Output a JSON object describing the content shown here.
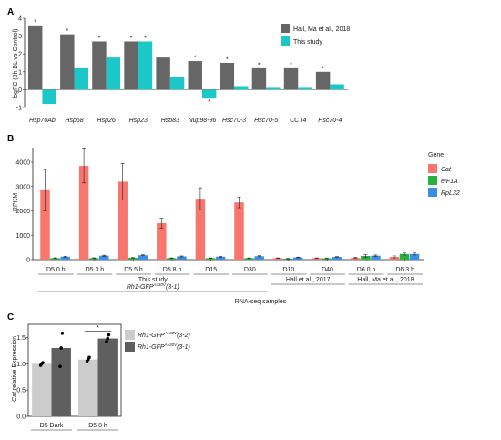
{
  "panels": [
    {
      "letter": "A",
      "type": "bar",
      "ylabel": "logFC (3h BL vs Control)",
      "ylim": [
        -1,
        4
      ],
      "yticks": [
        -1,
        0,
        1,
        2,
        3,
        4
      ],
      "categories": [
        "Hsp70Ab",
        "Hsp68",
        "Hsp26",
        "Hsp23",
        "Hsp83",
        "Nup98-96",
        "Hsc70-3",
        "Hsc70-5",
        "CCT4",
        "Hsc70-4"
      ],
      "series": [
        {
          "name": "Hall, Ma et al., 2018",
          "color": "#666666",
          "values": [
            3.6,
            3.1,
            2.7,
            2.7,
            1.8,
            1.6,
            1.5,
            1.2,
            1.2,
            1.0
          ]
        },
        {
          "name": "This study",
          "color": "#1cc7c7",
          "values": [
            -0.8,
            1.2,
            1.8,
            2.7,
            0.7,
            -0.5,
            0.2,
            0.1,
            0.1,
            0.3
          ]
        }
      ],
      "significance": [
        {
          "category": 0,
          "series": 0,
          "label": "*"
        },
        {
          "category": 1,
          "series": 0,
          "label": "*"
        },
        {
          "category": 2,
          "series": 0,
          "label": "*"
        },
        {
          "category": 3,
          "series": 0,
          "label": "*"
        },
        {
          "category": 3,
          "series": 1,
          "label": "*"
        },
        {
          "category": 5,
          "series": 0,
          "label": "*"
        },
        {
          "category": 5,
          "series": 1,
          "label": "*"
        },
        {
          "category": 6,
          "series": 0,
          "label": "*"
        },
        {
          "category": 7,
          "series": 0,
          "label": "*"
        },
        {
          "category": 8,
          "series": 0,
          "label": "*"
        },
        {
          "category": 9,
          "series": 0,
          "label": "*"
        }
      ]
    },
    {
      "letter": "B",
      "type": "bar",
      "ylabel": "RPKM",
      "xlabel": "RNA-seq samples",
      "ylim": [
        0,
        4600
      ],
      "yticks": [
        0,
        1000,
        2000,
        3000,
        4000
      ],
      "legend_title": "Gene",
      "categories": [
        "D5 0 h",
        "D5  3 h",
        "D5  5 h",
        "D5 8 h",
        "D15",
        "D30",
        "D10",
        "D40",
        "D6 0 h",
        "D6  3 h"
      ],
      "series": [
        {
          "name": "Cat",
          "color": "#f8766d",
          "values": [
            2850,
            3850,
            3200,
            1500,
            2500,
            2350,
            60,
            60,
            70,
            110
          ],
          "err": [
            850,
            700,
            750,
            200,
            450,
            220,
            10,
            10,
            20,
            40
          ]
        },
        {
          "name": "eIF1A",
          "color": "#27b13f",
          "values": [
            60,
            60,
            70,
            60,
            60,
            60,
            40,
            50,
            150,
            230
          ],
          "err": [
            15,
            15,
            15,
            10,
            10,
            10,
            10,
            10,
            50,
            40
          ]
        },
        {
          "name": "RpL32",
          "color": "#3d8fe6",
          "values": [
            120,
            160,
            180,
            130,
            120,
            140,
            90,
            110,
            160,
            230
          ],
          "err": [
            20,
            20,
            20,
            20,
            20,
            20,
            15,
            15,
            30,
            40
          ]
        }
      ],
      "groups": [
        {
          "label": "This study",
          "label2_prefix": "Rh1-GFP",
          "label2_sup": "A430V",
          "label2_suffix": "(3-1)",
          "from": 0,
          "to": 5
        },
        {
          "label": "Hall et al., 2017",
          "from": 6,
          "to": 7
        },
        {
          "label": "Hall, Ma et al., 2018",
          "from": 8,
          "to": 9
        }
      ]
    },
    {
      "letter": "C",
      "type": "bar",
      "ylabel_italic": "Cat",
      "ylabel_rest": " relative Expression",
      "ylim": [
        0,
        1.75
      ],
      "yticks": [
        0.0,
        0.5,
        1.0,
        1.5
      ],
      "categories": [
        "D5 Dark",
        "D5 8 h"
      ],
      "series": [
        {
          "name_prefix": "Rh1-GFP",
          "name_sup": "A430V",
          "name_suffix": "(3-2)",
          "color": "#cccccc",
          "values": [
            1.0,
            1.08
          ],
          "points": [
            [
              0.97,
              1.0,
              1.02
            ],
            [
              1.05,
              1.08,
              1.12
            ]
          ]
        },
        {
          "name_prefix": "Rh1-GFP",
          "name_sup": "A430V",
          "name_suffix": "(3-1)",
          "color": "#5f5f5f",
          "values": [
            1.3,
            1.48
          ],
          "points": [
            [
              0.95,
              1.3,
              1.58
            ],
            [
              1.42,
              1.48,
              1.55
            ]
          ]
        }
      ],
      "significance": [
        {
          "from_series": 0,
          "to_series": 1,
          "category": 1,
          "label": "*"
        }
      ]
    }
  ]
}
